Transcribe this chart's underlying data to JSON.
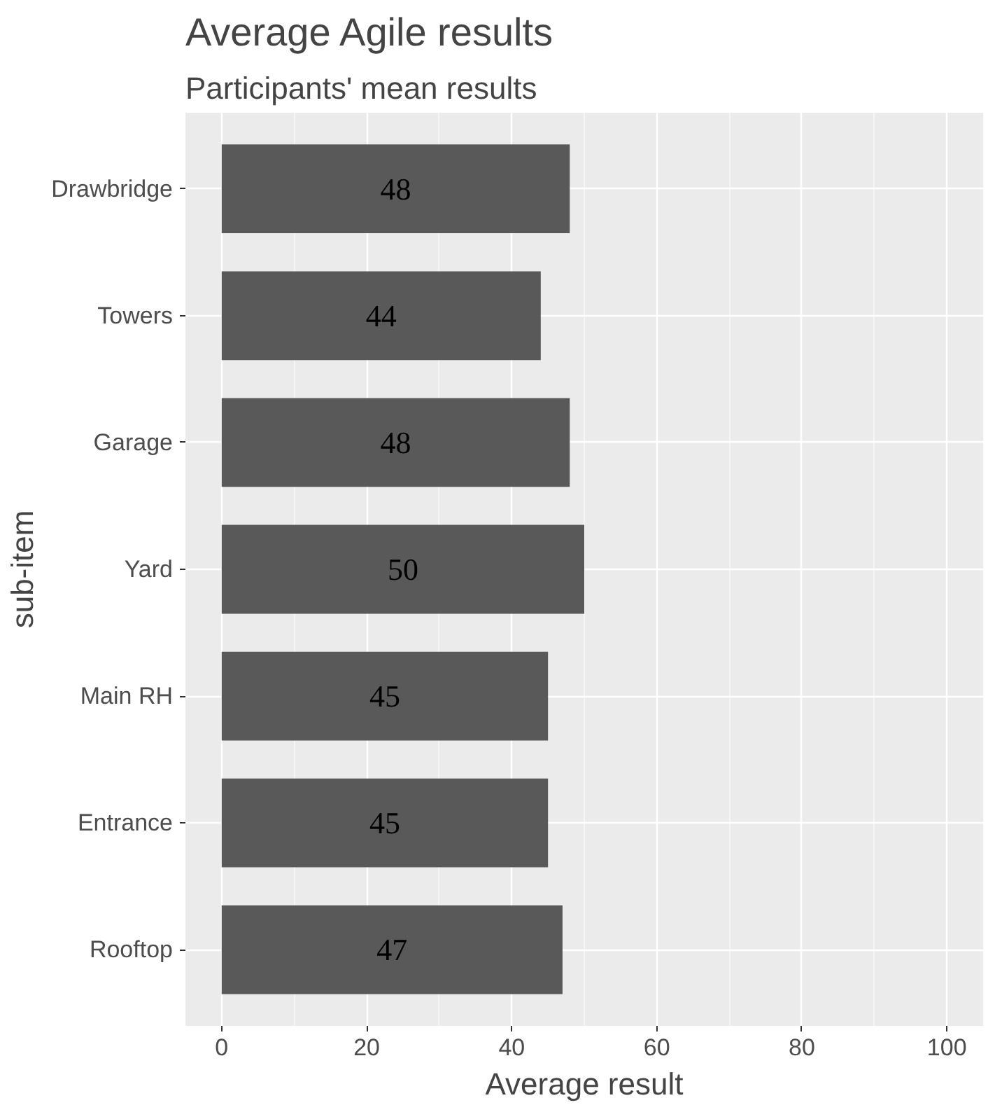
{
  "chart_data": {
    "type": "bar",
    "orientation": "horizontal",
    "title": "Average Agile results",
    "subtitle": "Participants' mean results",
    "xlabel": "Average result",
    "ylabel": "sub-item",
    "categories": [
      "Drawbridge",
      "Towers",
      "Garage",
      "Yard",
      "Main RH",
      "Entrance",
      "Rooftop"
    ],
    "values": [
      48,
      44,
      48,
      50,
      45,
      45,
      47
    ],
    "color": "#595959",
    "data_labels": true,
    "xlim": [
      -5,
      105
    ],
    "xticks": [
      0,
      20,
      40,
      60,
      80,
      100
    ],
    "grid": true
  }
}
